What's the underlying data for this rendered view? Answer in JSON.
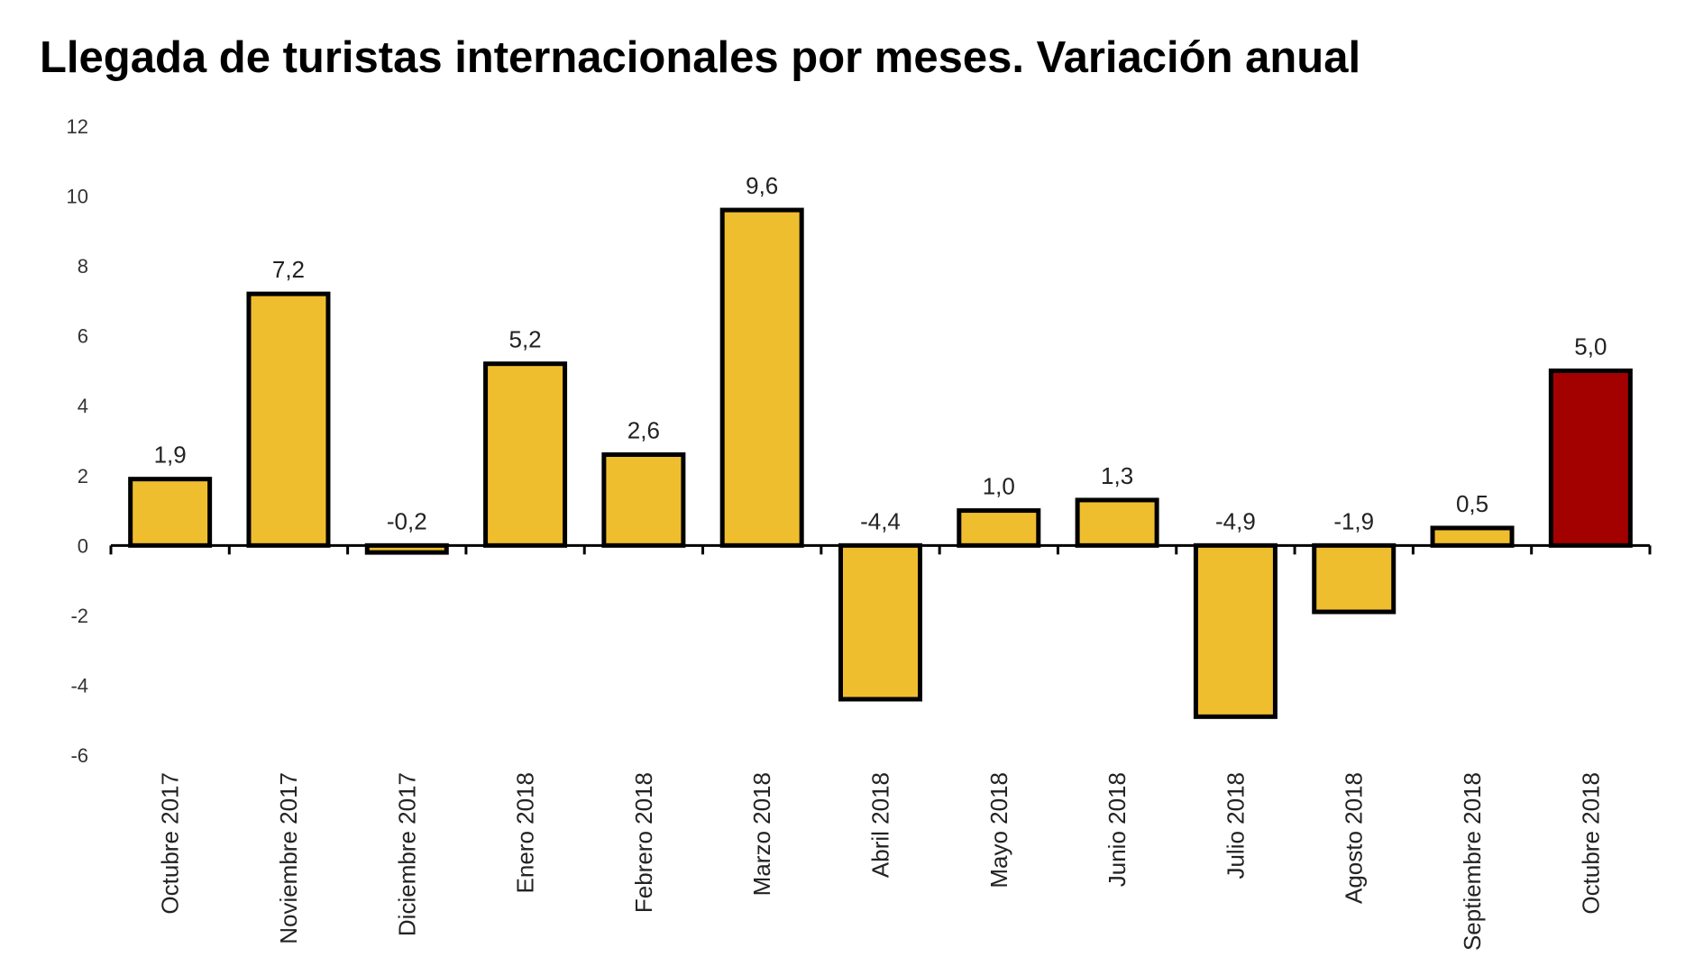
{
  "chart_data": {
    "type": "bar",
    "title": "Llegada de turistas internacionales por meses. Variación anual",
    "xlabel": "",
    "ylabel": "",
    "categories": [
      "Octubre 2017",
      "Noviembre 2017",
      "Diciembre 2017",
      "Enero 2018",
      "Febrero 2018",
      "Marzo 2018",
      "Abril 2018",
      "Mayo 2018",
      "Junio 2018",
      "Julio 2018",
      "Agosto 2018",
      "Septiembre 2018",
      "Octubre 2018"
    ],
    "values": [
      1.9,
      7.2,
      -0.2,
      5.2,
      2.6,
      9.6,
      -4.4,
      1.0,
      1.3,
      -4.9,
      -1.9,
      0.5,
      5.0
    ],
    "data_labels": [
      "1,9",
      "7,2",
      "-0,2",
      "5,2",
      "2,6",
      "9,6",
      "-4,4",
      "1,0",
      "1,3",
      "-4,9",
      "-1,9",
      "0,5",
      "5,0"
    ],
    "ylim": [
      -6,
      12
    ],
    "yticks": [
      12,
      10,
      8,
      6,
      4,
      2,
      0,
      -2,
      -4,
      -6
    ],
    "grid": false,
    "legend": "none",
    "colors": {
      "bar": "#EFBE2F",
      "highlight": "#A30000",
      "outline": "#000000"
    },
    "highlight_index": 12
  }
}
